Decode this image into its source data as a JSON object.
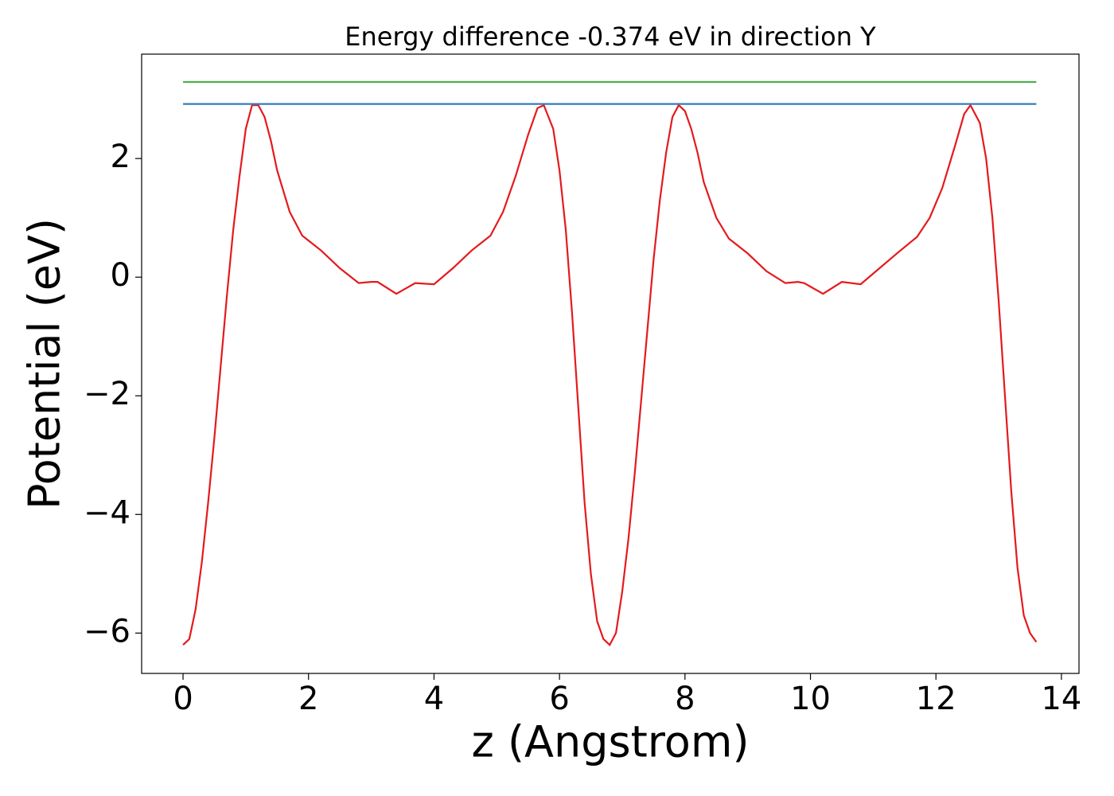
{
  "chart_data": {
    "type": "line",
    "title": "Energy difference -0.374 eV in direction Y",
    "xlabel": "z (Angstrom)",
    "ylabel": "Potential (eV)",
    "xlim": [
      -0.66,
      14.28
    ],
    "ylim": [
      -6.68,
      3.76
    ],
    "xticks": [
      0,
      2,
      4,
      6,
      8,
      10,
      12,
      14
    ],
    "yticks": [
      {
        "value": -6,
        "label": "−6"
      },
      {
        "value": -4,
        "label": "−4"
      },
      {
        "value": -2,
        "label": "−2"
      },
      0,
      2
    ],
    "series": [
      {
        "color": "#e41a1c",
        "x": [
          0,
          0.1,
          0.2,
          0.3,
          0.4,
          0.5,
          0.6,
          0.7,
          0.8,
          0.9,
          1.0,
          1.1,
          1.2,
          1.3,
          1.4,
          1.5,
          1.7,
          1.9,
          2.2,
          2.5,
          2.8,
          3.0,
          3.1,
          3.4,
          3.7,
          4.0,
          4.3,
          4.6,
          4.9,
          5.1,
          5.3,
          5.5,
          5.65,
          5.75,
          5.9,
          6.0,
          6.1,
          6.2,
          6.3,
          6.4,
          6.5,
          6.6,
          6.7,
          6.8,
          6.9,
          7.0,
          7.1,
          7.2,
          7.3,
          7.4,
          7.5,
          7.6,
          7.7,
          7.8,
          7.9,
          8.0,
          8.1,
          8.2,
          8.3,
          8.5,
          8.7,
          9.0,
          9.3,
          9.6,
          9.8,
          9.9,
          10.2,
          10.5,
          10.8,
          11.1,
          11.4,
          11.7,
          11.9,
          12.1,
          12.3,
          12.45,
          12.55,
          12.7,
          12.8,
          12.9,
          13.0,
          13.1,
          13.2,
          13.3,
          13.4,
          13.5,
          13.6
        ],
        "values": [
          -6.2,
          -6.1,
          -5.6,
          -4.8,
          -3.8,
          -2.7,
          -1.5,
          -0.3,
          0.8,
          1.7,
          2.5,
          2.9,
          2.9,
          2.7,
          2.3,
          1.8,
          1.1,
          0.7,
          0.45,
          0.15,
          -0.1,
          -0.08,
          -0.08,
          -0.28,
          -0.1,
          -0.12,
          0.15,
          0.45,
          0.7,
          1.1,
          1.7,
          2.4,
          2.85,
          2.9,
          2.5,
          1.8,
          0.8,
          -0.6,
          -2.2,
          -3.8,
          -5.0,
          -5.8,
          -6.1,
          -6.2,
          -6.0,
          -5.3,
          -4.4,
          -3.3,
          -2.1,
          -0.9,
          0.3,
          1.3,
          2.1,
          2.7,
          2.9,
          2.8,
          2.5,
          2.1,
          1.6,
          1.0,
          0.65,
          0.4,
          0.1,
          -0.1,
          -0.08,
          -0.1,
          -0.28,
          -0.08,
          -0.12,
          0.15,
          0.42,
          0.68,
          1.0,
          1.5,
          2.2,
          2.75,
          2.9,
          2.6,
          2.0,
          1.0,
          -0.4,
          -2.0,
          -3.6,
          -4.9,
          -5.7,
          -6.0,
          -6.15
        ]
      },
      {
        "color": "#377eb8",
        "x": [
          0,
          13.6
        ],
        "values": [
          2.92,
          2.92
        ]
      },
      {
        "color": "#4daf4a",
        "x": [
          0,
          13.6
        ],
        "values": [
          3.29,
          3.29
        ]
      }
    ]
  }
}
